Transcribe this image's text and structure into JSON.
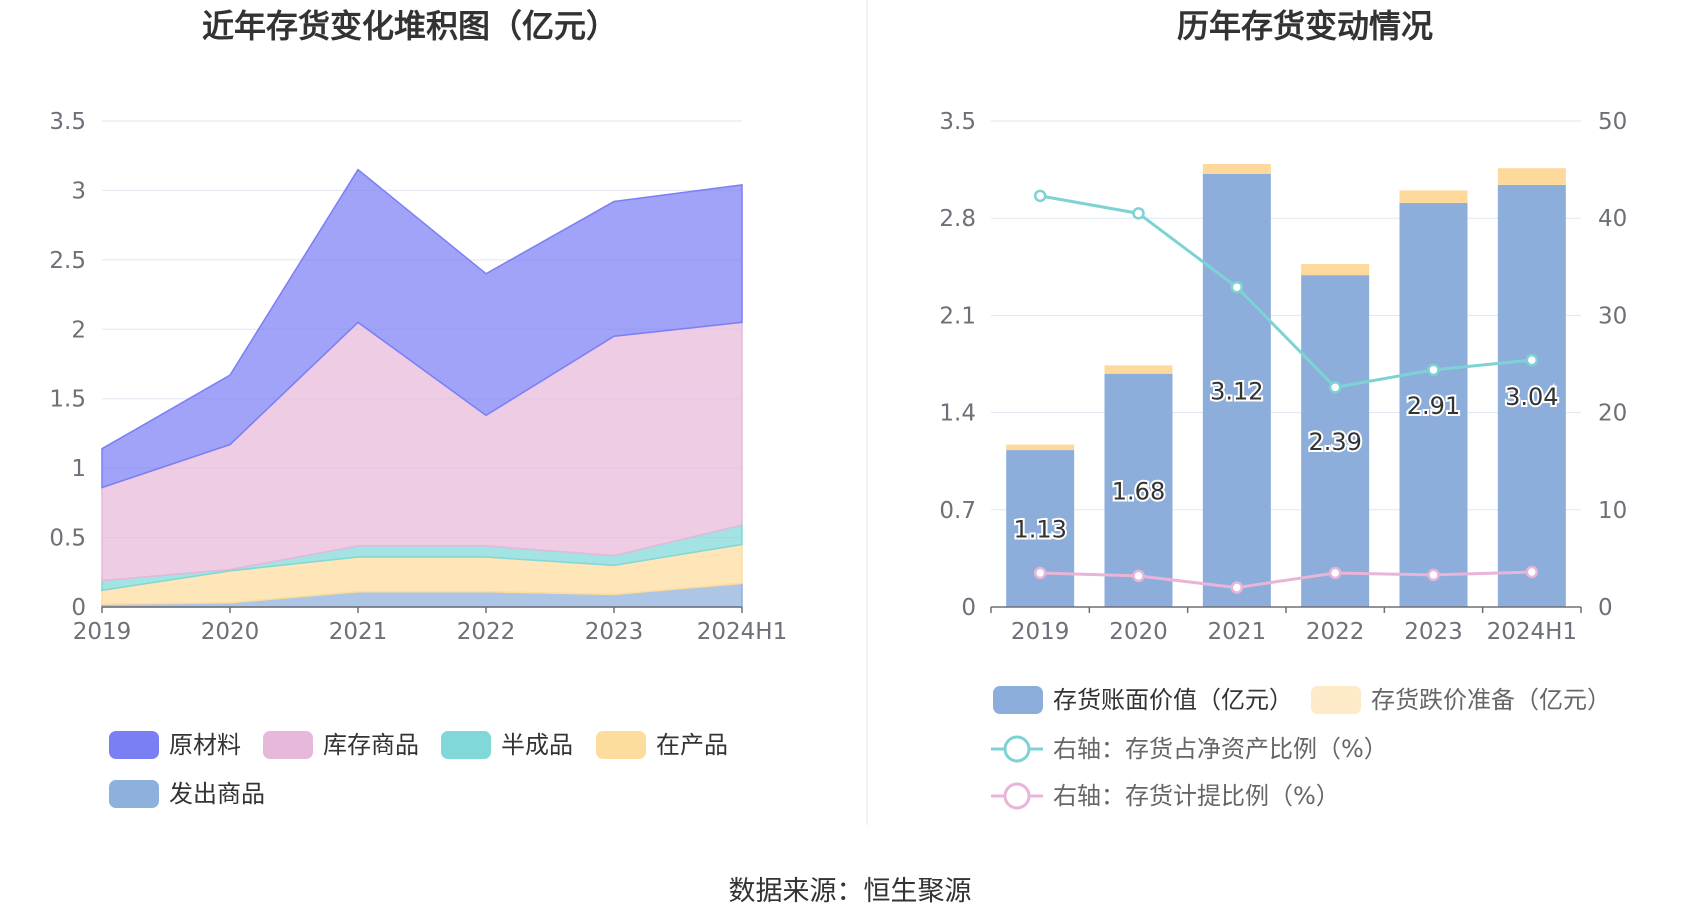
{
  "source_text": "数据来源：恒生聚源",
  "chart_data": [
    {
      "type": "area",
      "title": "近年存货变化堆积图（亿元）",
      "stacked": true,
      "categories": [
        "2019",
        "2020",
        "2021",
        "2022",
        "2023",
        "2024H1"
      ],
      "ylim": [
        0,
        3.5
      ],
      "yticks": [
        "0",
        "0.5",
        "1",
        "1.5",
        "2",
        "2.5",
        "3",
        "3.5"
      ],
      "grid": true,
      "legend_position": "bottom",
      "series": [
        {
          "name": "发出商品",
          "color": "#8eb0dd",
          "values": [
            0.02,
            0.03,
            0.11,
            0.11,
            0.09,
            0.17
          ]
        },
        {
          "name": "在产品",
          "color": "#fddd9e",
          "values": [
            0.1,
            0.23,
            0.25,
            0.25,
            0.21,
            0.28
          ]
        },
        {
          "name": "半成品",
          "color": "#80d8d8",
          "values": [
            0.07,
            0.01,
            0.08,
            0.08,
            0.07,
            0.14
          ]
        },
        {
          "name": "库存商品",
          "color": "#e6b8da",
          "values": [
            0.67,
            0.9,
            1.61,
            0.94,
            1.58,
            1.46
          ]
        },
        {
          "name": "原材料",
          "color": "#7b7ff4",
          "values": [
            0.28,
            0.5,
            1.1,
            1.02,
            0.97,
            0.99
          ]
        }
      ]
    },
    {
      "type": "bar",
      "title": "历年存货变动情况",
      "categories": [
        "2019",
        "2020",
        "2021",
        "2022",
        "2023",
        "2024H1"
      ],
      "ylim": [
        0,
        3.5
      ],
      "yticks": [
        "0",
        "0.7",
        "1.4",
        "2.1",
        "2.8",
        "3.5"
      ],
      "y2lim": [
        0,
        50
      ],
      "y2ticks": [
        "0",
        "10",
        "20",
        "30",
        "40",
        "50"
      ],
      "grid": true,
      "legend_position": "bottom",
      "series": [
        {
          "name": "存货账面价值（亿元）",
          "kind": "bar",
          "color": "#8daedb",
          "values": [
            1.13,
            1.68,
            3.12,
            2.39,
            2.91,
            3.04
          ],
          "labels": [
            "1.13",
            "1.68",
            "3.12",
            "2.39",
            "2.91",
            "3.04"
          ]
        },
        {
          "name": "存货跌价准备（亿元）",
          "kind": "bar-stack",
          "color": "#fdd99b",
          "values": [
            0.04,
            0.06,
            0.07,
            0.08,
            0.09,
            0.12
          ]
        },
        {
          "name": "右轴：存货占净资产比例（%）",
          "kind": "line",
          "axis": "right",
          "color": "#7dd3d4",
          "values": [
            42.3,
            40.5,
            32.9,
            22.6,
            24.4,
            25.4
          ]
        },
        {
          "name": "右轴：存货计提比例（%）",
          "kind": "line",
          "axis": "right",
          "color": "#e8b4d8",
          "values": [
            3.5,
            3.2,
            2.0,
            3.5,
            3.3,
            3.6
          ]
        }
      ]
    }
  ]
}
